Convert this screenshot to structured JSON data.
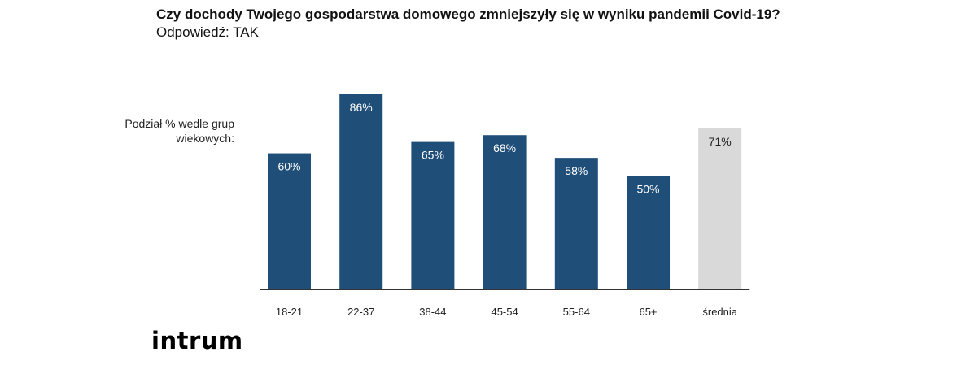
{
  "header": {
    "title": "Czy dochody Twojego gospodarstwa domowego zmniejszyły się w wyniku pandemii Covid-19?",
    "subtitle": "Odpowiedź: TAK"
  },
  "side_label": "Podział % wedle grup wiekowych:",
  "logo_text": "intrum",
  "colors": {
    "bar": "#1f4e79",
    "average_bar": "#d9d9d9",
    "bar_label": "#ffffff",
    "average_label": "#222222",
    "axis": "#333333"
  },
  "chart_data": {
    "type": "bar",
    "title": "Czy dochody Twojego gospodarstwa domowego zmniejszyły się w wyniku pandemii Covid-19?",
    "subtitle": "Odpowiedź: TAK",
    "ylabel": "Podział % wedle grup wiekowych:",
    "xlabel": "",
    "categories": [
      "18-21",
      "22-37",
      "38-44",
      "45-54",
      "55-64",
      "65+",
      "średnia"
    ],
    "values": [
      60,
      86,
      65,
      68,
      58,
      50,
      71
    ],
    "data_labels": [
      "60%",
      "86%",
      "65%",
      "68%",
      "58%",
      "50%",
      "71%"
    ],
    "highlight_index": 6,
    "ylim": [
      0,
      86
    ],
    "grid": false,
    "legend": "none"
  }
}
